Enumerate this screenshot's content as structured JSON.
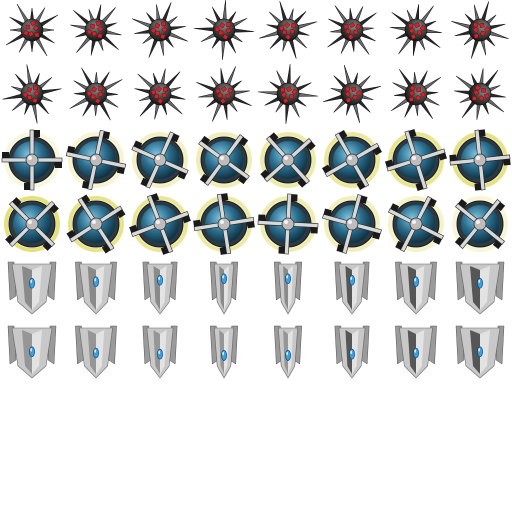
{
  "sprite_sheet": {
    "columns": 8,
    "rows": [
      {
        "name": "spiked-mine",
        "frames": 8,
        "base_color": "#3a3a3a",
        "accent": "#d0242a"
      },
      {
        "name": "spiked-mine",
        "frames": 8,
        "base_color": "#3a3a3a",
        "accent": "#d0242a"
      },
      {
        "name": "turret-disc",
        "frames": 8,
        "ring_color": "#e4e07a",
        "core_color": "#2c6e8e"
      },
      {
        "name": "turret-disc",
        "frames": 8,
        "ring_color": "#e4e07a",
        "core_color": "#2c6e8e"
      },
      {
        "name": "fighter-ship",
        "frames": 8,
        "hull_color": "#c8c8c8",
        "cockpit_color": "#3aa0e0"
      },
      {
        "name": "fighter-ship",
        "frames": 8,
        "hull_color": "#c8c8c8",
        "cockpit_color": "#3aa0e0"
      }
    ],
    "background": "#ffffff"
  }
}
